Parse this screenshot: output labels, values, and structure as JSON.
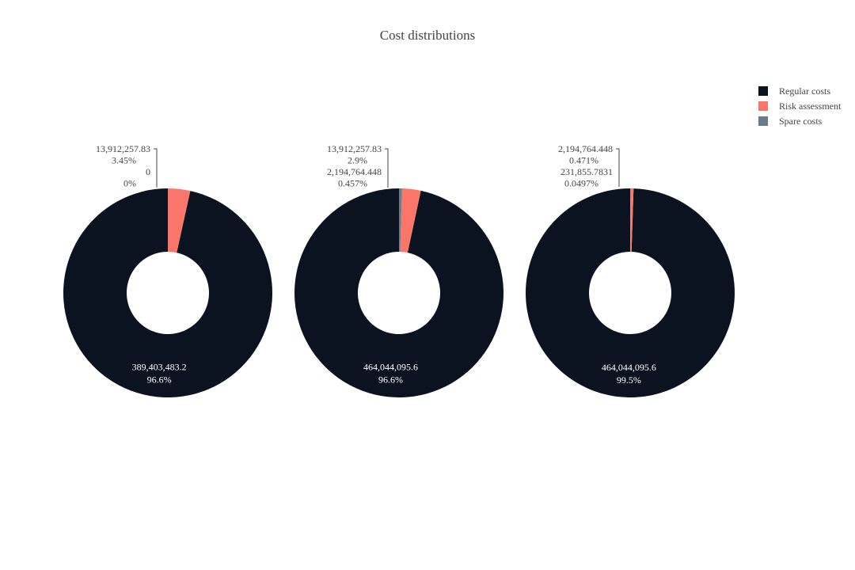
{
  "chart_data": {
    "type": "pie",
    "title": "Cost distributions",
    "legend_placement": "top-right",
    "series_order": [
      "Regular costs",
      "Risk assessment",
      "Spare costs"
    ],
    "colors": {
      "Regular costs": "#0b1320",
      "Risk assessment": "#fa766b",
      "Spare costs": "#6b7b8e"
    },
    "charts": [
      {
        "slices": [
          {
            "label": "Regular costs",
            "value": 389403483.2,
            "value_text": "389,403,483.2",
            "percent_text": "96.6%"
          },
          {
            "label": "Risk assessment",
            "value": 13912257.83,
            "value_text": "13,912,257.83",
            "percent_text": "3.45%"
          },
          {
            "label": "Spare costs",
            "value": 0,
            "value_text": "0",
            "percent_text": "0%"
          }
        ]
      },
      {
        "slices": [
          {
            "label": "Regular costs",
            "value": 464044095.6,
            "value_text": "464,044,095.6",
            "percent_text": "96.6%"
          },
          {
            "label": "Risk assessment",
            "value": 13912257.83,
            "value_text": "13,912,257.83",
            "percent_text": "2.9%"
          },
          {
            "label": "Spare costs",
            "value": 2194764.448,
            "value_text": "2,194,764.448",
            "percent_text": "0.457%"
          }
        ]
      },
      {
        "slices": [
          {
            "label": "Regular costs",
            "value": 464044095.6,
            "value_text": "464,044,095.6",
            "percent_text": "99.5%"
          },
          {
            "label": "Risk assessment",
            "value": 2194764.448,
            "value_text": "2,194,764.448",
            "percent_text": "0.471%"
          },
          {
            "label": "Spare costs",
            "value": 231855.7831,
            "value_text": "231,855.7831",
            "percent_text": "0.0497%"
          }
        ]
      }
    ]
  }
}
